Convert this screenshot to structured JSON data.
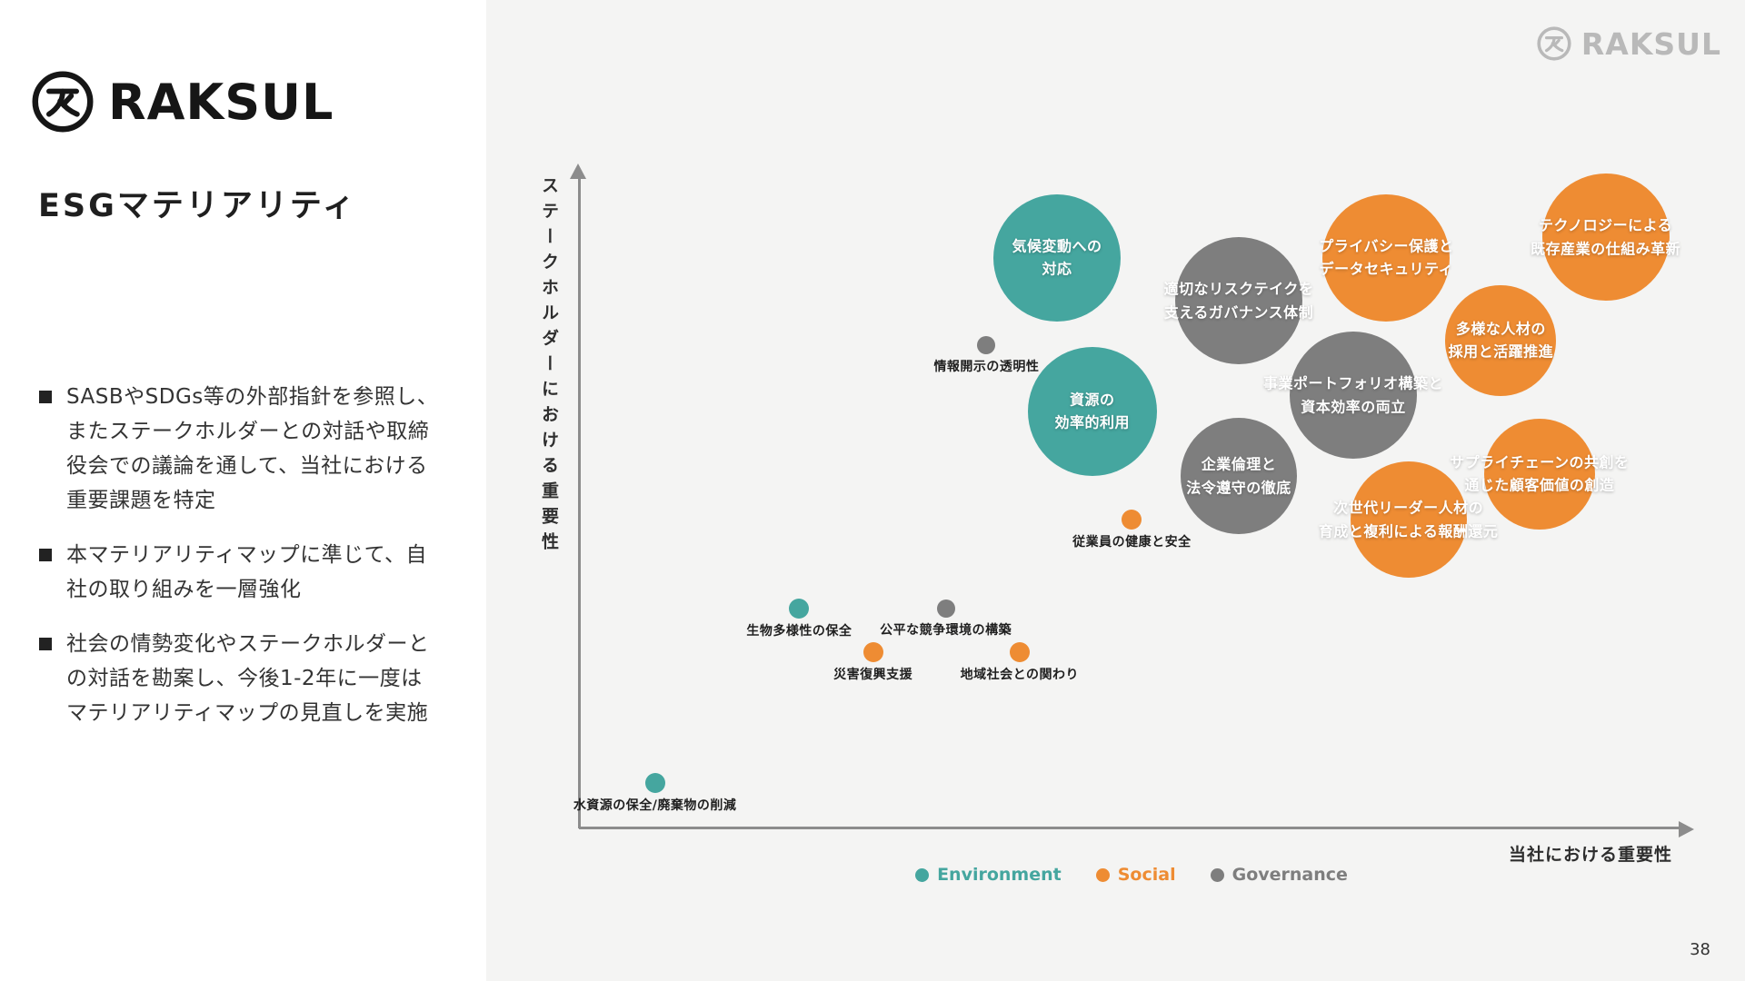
{
  "page_number": "38",
  "watermark": {
    "text": "RAKSUL"
  },
  "sidebar": {
    "logo_text": "RAKSUL",
    "title": "ESGマテリアリティ",
    "bullets": [
      "SASBやSDGs等の外部指針を参照し、\nまたステークホルダーとの対話や取締\n役会での議論を通して、当社における\n重要課題を特定",
      "本マテリアリティマップに準じて、自\n社の取り組みを一層強化",
      "社会の情勢変化やステークホルダーと\nの対話を勘案し、今後1-2年に一度は\nマテリアリティマップの見直しを実施"
    ]
  },
  "chart_data": {
    "type": "scatter",
    "subtype": "bubble-materiality-map",
    "xlabel": "当社における重要性",
    "ylabel": "ステークホルダーにおける重要性",
    "axis_scale": "qualitative; x,y are bubble-center positions in % of plot area measured from left/top; r is bubble radius in px",
    "grid": false,
    "legend_position": "bottom-center",
    "palette": {
      "environment": "#45A69F",
      "social": "#EE8C33",
      "governance": "#7E7E7E"
    },
    "legend": [
      {
        "category": "environment",
        "label": "Environment"
      },
      {
        "category": "social",
        "label": "Social"
      },
      {
        "category": "governance",
        "label": "Governance"
      }
    ],
    "bubbles": [
      {
        "label": "適切なリスクテイクを\n支えるガバナンス体制",
        "category": "governance",
        "x": 59.9,
        "y": 20.2,
        "r": 70,
        "label_pos": "inside"
      },
      {
        "label": "事業ポートフォリオ構築と\n資本効率の両立",
        "category": "governance",
        "x": 70.3,
        "y": 34.5,
        "r": 70,
        "label_pos": "inside"
      },
      {
        "label": "企業倫理と\n法令遵守の徹底",
        "category": "governance",
        "x": 59.9,
        "y": 46.7,
        "r": 64,
        "label_pos": "inside"
      },
      {
        "label": "気候変動への\n対応",
        "category": "environment",
        "x": 43.4,
        "y": 13.7,
        "r": 70,
        "label_pos": "inside"
      },
      {
        "label": "資源の\n効率的利用",
        "category": "environment",
        "x": 46.6,
        "y": 36.9,
        "r": 71,
        "label_pos": "inside"
      },
      {
        "label": "プライバシー保護と\nデータセキュリティ",
        "category": "social",
        "x": 73.3,
        "y": 13.7,
        "r": 70,
        "label_pos": "inside"
      },
      {
        "label": "テクノロジーによる\n既存産業の仕組み革新",
        "category": "social",
        "x": 93.2,
        "y": 10.6,
        "r": 70,
        "label_pos": "inside"
      },
      {
        "label": "多様な人材の\n採用と活躍推進",
        "category": "social",
        "x": 83.7,
        "y": 26.2,
        "r": 61,
        "label_pos": "inside"
      },
      {
        "label": "サプライチェーンの共創を\n通じた顧客価値の創造",
        "category": "social",
        "x": 87.2,
        "y": 46.4,
        "r": 61,
        "label_pos": "inside"
      },
      {
        "label": "次世代リーダー人材の\n育成と複利による報酬還元",
        "category": "social",
        "x": 75.3,
        "y": 53.3,
        "r": 64,
        "label_pos": "inside"
      },
      {
        "label": "情報開示の透明性",
        "category": "governance",
        "x": 37.0,
        "y": 26.9,
        "r": 10,
        "label_pos": "below"
      },
      {
        "label": "従業員の健康と安全",
        "category": "social",
        "x": 50.2,
        "y": 53.3,
        "r": 11,
        "label_pos": "below"
      },
      {
        "label": "生物多様性の保全",
        "category": "environment",
        "x": 20.0,
        "y": 66.8,
        "r": 11,
        "label_pos": "below"
      },
      {
        "label": "公平な競争環境の構築",
        "category": "governance",
        "x": 33.3,
        "y": 66.8,
        "r": 10,
        "label_pos": "below"
      },
      {
        "label": "災害復興支援",
        "category": "social",
        "x": 26.7,
        "y": 73.4,
        "r": 11,
        "label_pos": "below"
      },
      {
        "label": "地域社会との関わり",
        "category": "social",
        "x": 40.0,
        "y": 73.4,
        "r": 11,
        "label_pos": "below"
      },
      {
        "label": "水資源の保全/廃棄物の削減",
        "category": "environment",
        "x": 6.9,
        "y": 93.1,
        "r": 11,
        "label_pos": "below"
      }
    ]
  }
}
